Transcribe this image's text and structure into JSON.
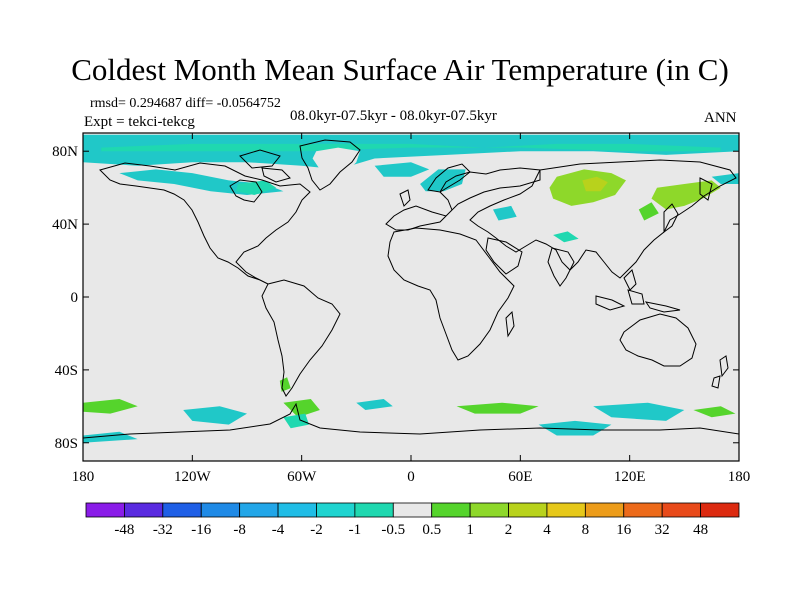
{
  "title": "Coldest Month Mean Surface Air Temperature (in C)",
  "stats": "rmsd= 0.294687  diff= -0.0564752",
  "subtitle": "08.0kyr-07.5kyr - 08.0kyr-07.5kyr",
  "expt": "Expt = tekci-tekcg",
  "season": "ANN",
  "chart_data": {
    "type": "heatmap",
    "projection": "cylindrical-equidistant",
    "x_range": [
      -180,
      180
    ],
    "y_range": [
      -90,
      90
    ],
    "x_tick_values": [
      -180,
      -120,
      -60,
      0,
      60,
      120,
      180
    ],
    "x_tick_labels": [
      "180",
      "120W",
      "60W",
      "0",
      "60E",
      "120E",
      "180"
    ],
    "y_tick_values": [
      80,
      40,
      0,
      -40,
      -80
    ],
    "y_tick_labels": [
      "80N",
      "40N",
      "0",
      "40S",
      "80S"
    ],
    "colorbar_labels": [
      "-48",
      "-32",
      "-16",
      "-8",
      "-4",
      "-2",
      "-1",
      "-0.5",
      "0.5",
      "1",
      "2",
      "4",
      "8",
      "16",
      "32",
      "48"
    ],
    "colorbar_colors": [
      "#8a1ce8",
      "#5a2be0",
      "#1f5fe6",
      "#1f8ae6",
      "#22a6e8",
      "#20bde6",
      "#1fd4d0",
      "#1fd8b0",
      "#e8e8e8",
      "#55d42c",
      "#8ed82a",
      "#b8d21c",
      "#e6c81a",
      "#ec9c1a",
      "#ec6a1a",
      "#e84a1a",
      "#dc2a10"
    ],
    "regions": [
      {
        "name": "arctic-cooling",
        "color": "#20c8c8",
        "points": [
          [
            -180,
            89
          ],
          [
            180,
            89
          ],
          [
            180,
            80
          ],
          [
            140,
            78
          ],
          [
            100,
            80
          ],
          [
            60,
            80
          ],
          [
            20,
            78
          ],
          [
            -20,
            76
          ],
          [
            -40,
            70
          ],
          [
            -60,
            72
          ],
          [
            -90,
            74
          ],
          [
            -120,
            74
          ],
          [
            -150,
            72
          ],
          [
            -180,
            74
          ]
        ]
      },
      {
        "name": "arctic-cooling-light",
        "color": "#1fd8b0",
        "points": [
          [
            -170,
            82
          ],
          [
            -120,
            84
          ],
          [
            -80,
            84
          ],
          [
            -40,
            84
          ],
          [
            0,
            84
          ],
          [
            40,
            82
          ],
          [
            80,
            84
          ],
          [
            120,
            84
          ],
          [
            170,
            82
          ],
          [
            170,
            80
          ],
          [
            120,
            80
          ],
          [
            60,
            82
          ],
          [
            0,
            82
          ],
          [
            -60,
            80
          ],
          [
            -120,
            80
          ],
          [
            -170,
            80
          ]
        ]
      },
      {
        "name": "greenland-interior",
        "color": "#e8e8e8",
        "points": [
          [
            -52,
            80
          ],
          [
            -40,
            82
          ],
          [
            -28,
            80
          ],
          [
            -30,
            74
          ],
          [
            -36,
            68
          ],
          [
            -44,
            64
          ],
          [
            -50,
            70
          ],
          [
            -54,
            76
          ]
        ]
      },
      {
        "name": "canada-cooling",
        "color": "#20c8c8",
        "points": [
          [
            -160,
            68
          ],
          [
            -140,
            70
          ],
          [
            -120,
            68
          ],
          [
            -100,
            64
          ],
          [
            -80,
            62
          ],
          [
            -70,
            58
          ],
          [
            -90,
            56
          ],
          [
            -110,
            58
          ],
          [
            -130,
            62
          ],
          [
            -150,
            64
          ]
        ]
      },
      {
        "name": "hudson-bay",
        "color": "#1fd8b0",
        "points": [
          [
            -95,
            62
          ],
          [
            -80,
            64
          ],
          [
            -74,
            60
          ],
          [
            -86,
            56
          ],
          [
            -96,
            58
          ]
        ]
      },
      {
        "name": "scandinavia",
        "color": "#20c8c8",
        "points": [
          [
            5,
            62
          ],
          [
            15,
            70
          ],
          [
            30,
            70
          ],
          [
            28,
            62
          ],
          [
            18,
            58
          ],
          [
            8,
            58
          ]
        ]
      },
      {
        "name": "norway-sea",
        "color": "#20c8c8",
        "points": [
          [
            -20,
            72
          ],
          [
            0,
            74
          ],
          [
            10,
            70
          ],
          [
            0,
            66
          ],
          [
            -15,
            66
          ]
        ]
      },
      {
        "name": "siberia-warming",
        "color": "#8ed82a",
        "points": [
          [
            80,
            66
          ],
          [
            95,
            70
          ],
          [
            110,
            68
          ],
          [
            118,
            64
          ],
          [
            112,
            56
          ],
          [
            100,
            52
          ],
          [
            88,
            50
          ],
          [
            78,
            54
          ],
          [
            76,
            60
          ]
        ]
      },
      {
        "name": "siberia-warming-core",
        "color": "#b8d21c",
        "points": [
          [
            94,
            64
          ],
          [
            102,
            66
          ],
          [
            108,
            63
          ],
          [
            104,
            58
          ],
          [
            96,
            58
          ]
        ]
      },
      {
        "name": "far-east-warming",
        "color": "#8ed82a",
        "points": [
          [
            135,
            60
          ],
          [
            150,
            62
          ],
          [
            165,
            64
          ],
          [
            170,
            60
          ],
          [
            160,
            54
          ],
          [
            150,
            50
          ],
          [
            140,
            48
          ],
          [
            132,
            54
          ]
        ]
      },
      {
        "name": "far-east-small",
        "color": "#55d42c",
        "points": [
          [
            125,
            48
          ],
          [
            132,
            52
          ],
          [
            136,
            46
          ],
          [
            128,
            42
          ]
        ]
      },
      {
        "name": "bering",
        "color": "#20c8c8",
        "points": [
          [
            165,
            66
          ],
          [
            180,
            68
          ],
          [
            180,
            62
          ],
          [
            170,
            62
          ]
        ]
      },
      {
        "name": "caspian-cool",
        "color": "#20c8c8",
        "points": [
          [
            45,
            48
          ],
          [
            55,
            50
          ],
          [
            58,
            44
          ],
          [
            48,
            42
          ]
        ]
      },
      {
        "name": "tibet-cool",
        "color": "#1fd8b0",
        "points": [
          [
            78,
            34
          ],
          [
            86,
            36
          ],
          [
            92,
            32
          ],
          [
            84,
            30
          ]
        ]
      },
      {
        "name": "southern-ocean-1",
        "color": "#55d42c",
        "points": [
          [
            -180,
            -58
          ],
          [
            -160,
            -56
          ],
          [
            -150,
            -60
          ],
          [
            -165,
            -64
          ],
          [
            -180,
            -63
          ]
        ]
      },
      {
        "name": "southern-ocean-2",
        "color": "#20c8c8",
        "points": [
          [
            -125,
            -62
          ],
          [
            -105,
            -60
          ],
          [
            -90,
            -64
          ],
          [
            -100,
            -70
          ],
          [
            -120,
            -68
          ]
        ]
      },
      {
        "name": "southern-ocean-3",
        "color": "#55d42c",
        "points": [
          [
            -70,
            -58
          ],
          [
            -55,
            -56
          ],
          [
            -50,
            -62
          ],
          [
            -62,
            -66
          ]
        ]
      },
      {
        "name": "southern-ocean-4",
        "color": "#20c8c8",
        "points": [
          [
            -30,
            -58
          ],
          [
            -15,
            -56
          ],
          [
            -10,
            -60
          ],
          [
            -25,
            -62
          ]
        ]
      },
      {
        "name": "southern-ocean-5",
        "color": "#55d42c",
        "points": [
          [
            25,
            -60
          ],
          [
            50,
            -58
          ],
          [
            70,
            -60
          ],
          [
            60,
            -64
          ],
          [
            35,
            -64
          ]
        ]
      },
      {
        "name": "southern-ocean-6",
        "color": "#20c8c8",
        "points": [
          [
            100,
            -60
          ],
          [
            130,
            -58
          ],
          [
            150,
            -62
          ],
          [
            140,
            -68
          ],
          [
            110,
            -66
          ]
        ]
      },
      {
        "name": "southern-ocean-7",
        "color": "#55d42c",
        "points": [
          [
            155,
            -62
          ],
          [
            170,
            -60
          ],
          [
            178,
            -64
          ],
          [
            165,
            -66
          ]
        ]
      },
      {
        "name": "antarctic-coast",
        "color": "#20c8c8",
        "points": [
          [
            -180,
            -76
          ],
          [
            -160,
            -74
          ],
          [
            -150,
            -78
          ],
          [
            -180,
            -80
          ]
        ]
      },
      {
        "name": "antarctic-east",
        "color": "#20c8c8",
        "points": [
          [
            70,
            -70
          ],
          [
            90,
            -68
          ],
          [
            110,
            -70
          ],
          [
            100,
            -76
          ],
          [
            80,
            -76
          ]
        ]
      },
      {
        "name": "antarctic-pen",
        "color": "#1fd8b0",
        "points": [
          [
            -70,
            -66
          ],
          [
            -58,
            -64
          ],
          [
            -56,
            -70
          ],
          [
            -66,
            -72
          ]
        ]
      },
      {
        "name": "andes-south",
        "color": "#55d42c",
        "points": [
          [
            -72,
            -46
          ],
          [
            -68,
            -44
          ],
          [
            -66,
            -50
          ],
          [
            -71,
            -52
          ]
        ]
      }
    ]
  }
}
